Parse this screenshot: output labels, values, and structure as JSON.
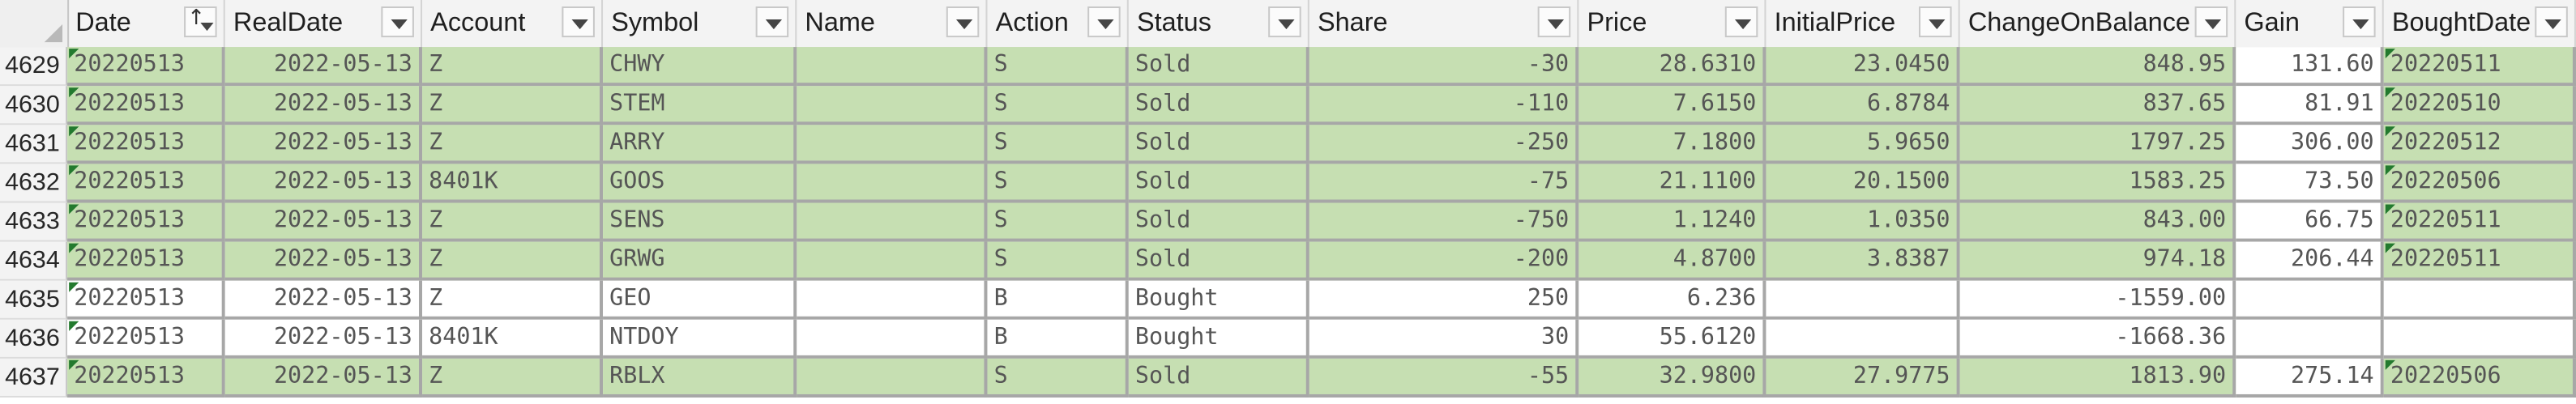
{
  "columns": [
    {
      "label": "Date",
      "sort": true
    },
    {
      "label": "RealDate"
    },
    {
      "label": "Account"
    },
    {
      "label": "Symbol"
    },
    {
      "label": "Name"
    },
    {
      "label": "Action"
    },
    {
      "label": "Status"
    },
    {
      "label": "Share"
    },
    {
      "label": "Price"
    },
    {
      "label": "InitialPrice"
    },
    {
      "label": "ChangeOnBalance"
    },
    {
      "label": "Gain"
    },
    {
      "label": "BoughtDate"
    }
  ],
  "rows": [
    {
      "num": "4629",
      "fill": "green",
      "cells": [
        "20220513",
        "2022-05-13",
        "Z",
        "CHWY",
        "",
        "S",
        "Sold",
        "-30",
        "28.6310",
        "23.0450",
        "848.95",
        "131.60",
        "20220511"
      ]
    },
    {
      "num": "4630",
      "fill": "green",
      "cells": [
        "20220513",
        "2022-05-13",
        "Z",
        "STEM",
        "",
        "S",
        "Sold",
        "-110",
        "7.6150",
        "6.8784",
        "837.65",
        "81.91",
        "20220510"
      ]
    },
    {
      "num": "4631",
      "fill": "green",
      "cells": [
        "20220513",
        "2022-05-13",
        "Z",
        "ARRY",
        "",
        "S",
        "Sold",
        "-250",
        "7.1800",
        "5.9650",
        "1797.25",
        "306.00",
        "20220512"
      ]
    },
    {
      "num": "4632",
      "fill": "green",
      "cells": [
        "20220513",
        "2022-05-13",
        "8401K",
        "GOOS",
        "",
        "S",
        "Sold",
        "-75",
        "21.1100",
        "20.1500",
        "1583.25",
        "73.50",
        "20220506"
      ]
    },
    {
      "num": "4633",
      "fill": "green",
      "cells": [
        "20220513",
        "2022-05-13",
        "Z",
        "SENS",
        "",
        "S",
        "Sold",
        "-750",
        "1.1240",
        "1.0350",
        "843.00",
        "66.75",
        "20220511"
      ]
    },
    {
      "num": "4634",
      "fill": "green",
      "cells": [
        "20220513",
        "2022-05-13",
        "Z",
        "GRWG",
        "",
        "S",
        "Sold",
        "-200",
        "4.8700",
        "3.8387",
        "974.18",
        "206.44",
        "20220511"
      ]
    },
    {
      "num": "4635",
      "fill": "white",
      "cells": [
        "20220513",
        "2022-05-13",
        "Z",
        "GEO",
        "",
        "B",
        "Bought",
        "250",
        "6.236",
        "",
        "-1559.00",
        "",
        ""
      ]
    },
    {
      "num": "4636",
      "fill": "white",
      "cells": [
        "20220513",
        "2022-05-13",
        "8401K",
        "NTDOY",
        "",
        "B",
        "Bought",
        "30",
        "55.6120",
        "",
        "-1668.36",
        "",
        ""
      ]
    },
    {
      "num": "4637",
      "fill": "green",
      "cells": [
        "20220513",
        "2022-05-13",
        "Z",
        "RBLX",
        "",
        "S",
        "Sold",
        "-55",
        "32.9800",
        "27.9775",
        "1813.90",
        "275.14",
        "20220506"
      ]
    }
  ]
}
